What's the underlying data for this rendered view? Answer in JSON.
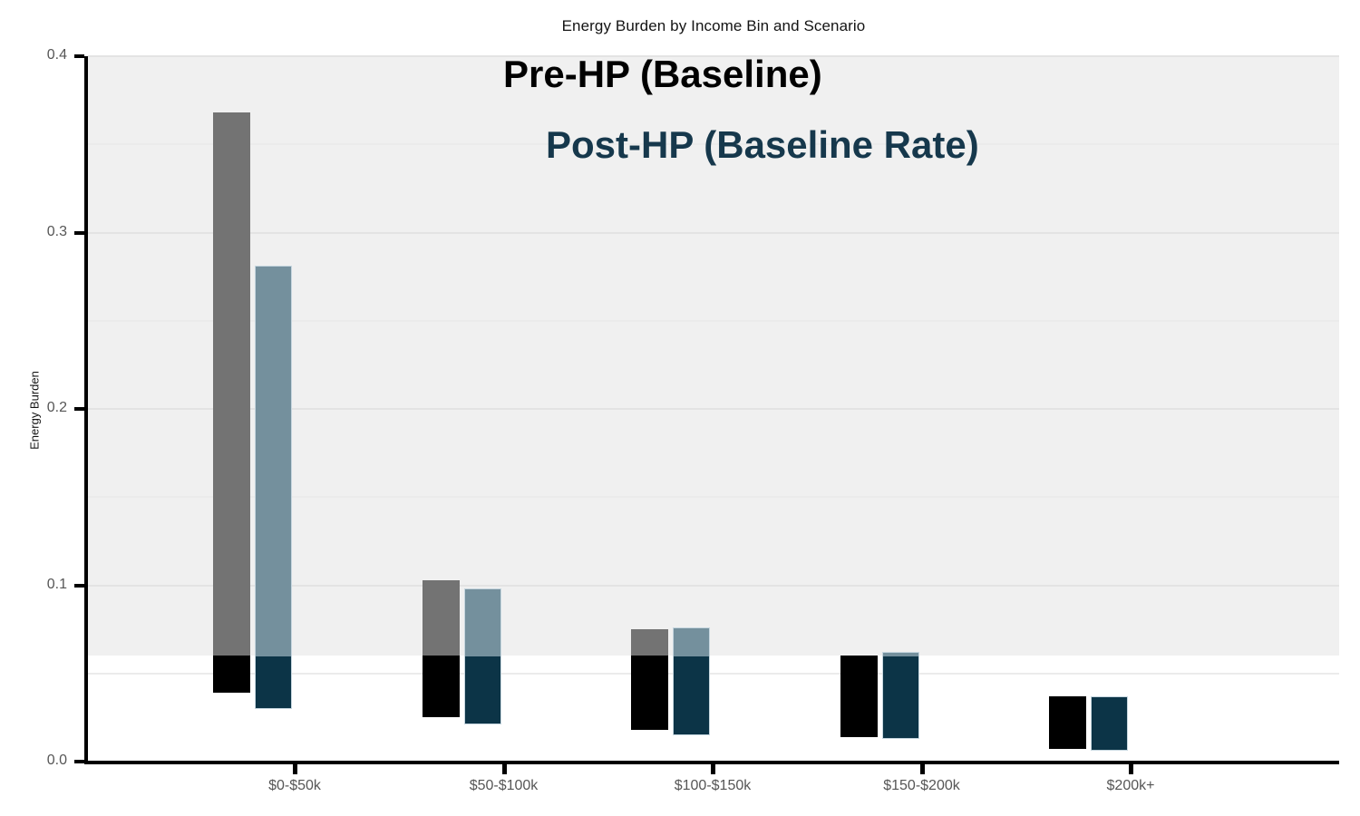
{
  "annotations": {
    "pre": "Pre-HP (Baseline)",
    "post": "Post-HP (Baseline Rate)"
  },
  "chart_data": {
    "type": "bar",
    "subtype": "floating-range-bars",
    "title": "Energy Burden by Income Bin and Scenario",
    "xlabel": "",
    "ylabel": "Energy Burden",
    "ylim": [
      0,
      0.4
    ],
    "y_ticks": [
      0.0,
      0.1,
      0.2,
      0.3,
      0.4
    ],
    "y_tick_labels": [
      "0.0",
      "0.1",
      "0.2",
      "0.3",
      "0.4"
    ],
    "grid_interval": 0.05,
    "grid": true,
    "threshold": 0.06,
    "threshold_note": "bar segments below 0.06 are drawn in dark colors; plot background is shaded above 0.06",
    "categories": [
      "$0-$50k",
      "$50-$100k",
      "$100-$150k",
      "$150-$200k",
      "$200k+"
    ],
    "legend_position": "inside-top-center-text-annotations",
    "series": [
      {
        "name": "Pre-HP (Baseline)",
        "low": [
          0.039,
          0.025,
          0.018,
          0.014,
          0.007
        ],
        "high": [
          0.368,
          0.103,
          0.075,
          0.06,
          0.037
        ],
        "color_above_threshold": "#737373",
        "color_below_threshold": "#000000"
      },
      {
        "name": "Post-HP (Baseline Rate)",
        "low": [
          0.03,
          0.021,
          0.015,
          0.013,
          0.006
        ],
        "high": [
          0.281,
          0.098,
          0.076,
          0.062,
          0.037
        ],
        "color_above_threshold": "#74909d",
        "color_below_threshold": "#0c3447"
      }
    ]
  },
  "colors": {
    "background": "#ffffff",
    "band": "#f0f0f0",
    "grid_major": "#e3e3e3",
    "grid_minor": "#ebebeb",
    "axis": "#000000",
    "tick_label": "#565656",
    "title_text": "#141414",
    "annotation_pre": "#000000",
    "annotation_post": "#16384c"
  }
}
